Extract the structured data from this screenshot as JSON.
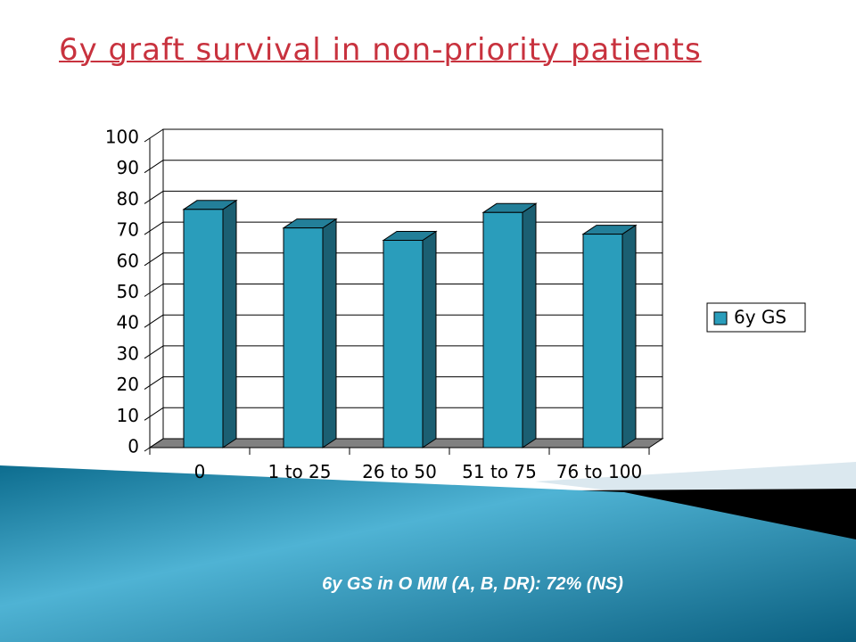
{
  "chart_data": {
    "type": "bar",
    "title": "6y graft survival in non-priority patients",
    "categories": [
      "0",
      "1 to 25",
      "26 to 50",
      "51 to 75",
      "76 to 100"
    ],
    "series": [
      {
        "name": "6y GS",
        "color": "#2a9dbb",
        "values": [
          77,
          71,
          67,
          76,
          69
        ]
      }
    ],
    "ylim": [
      0,
      100
    ],
    "yticks": [
      0,
      10,
      20,
      30,
      40,
      50,
      60,
      70,
      80,
      90,
      100
    ],
    "grid": true,
    "legend": "right",
    "annotation": "6y GS in O MM (A, B, DR): 72% (NS)"
  }
}
